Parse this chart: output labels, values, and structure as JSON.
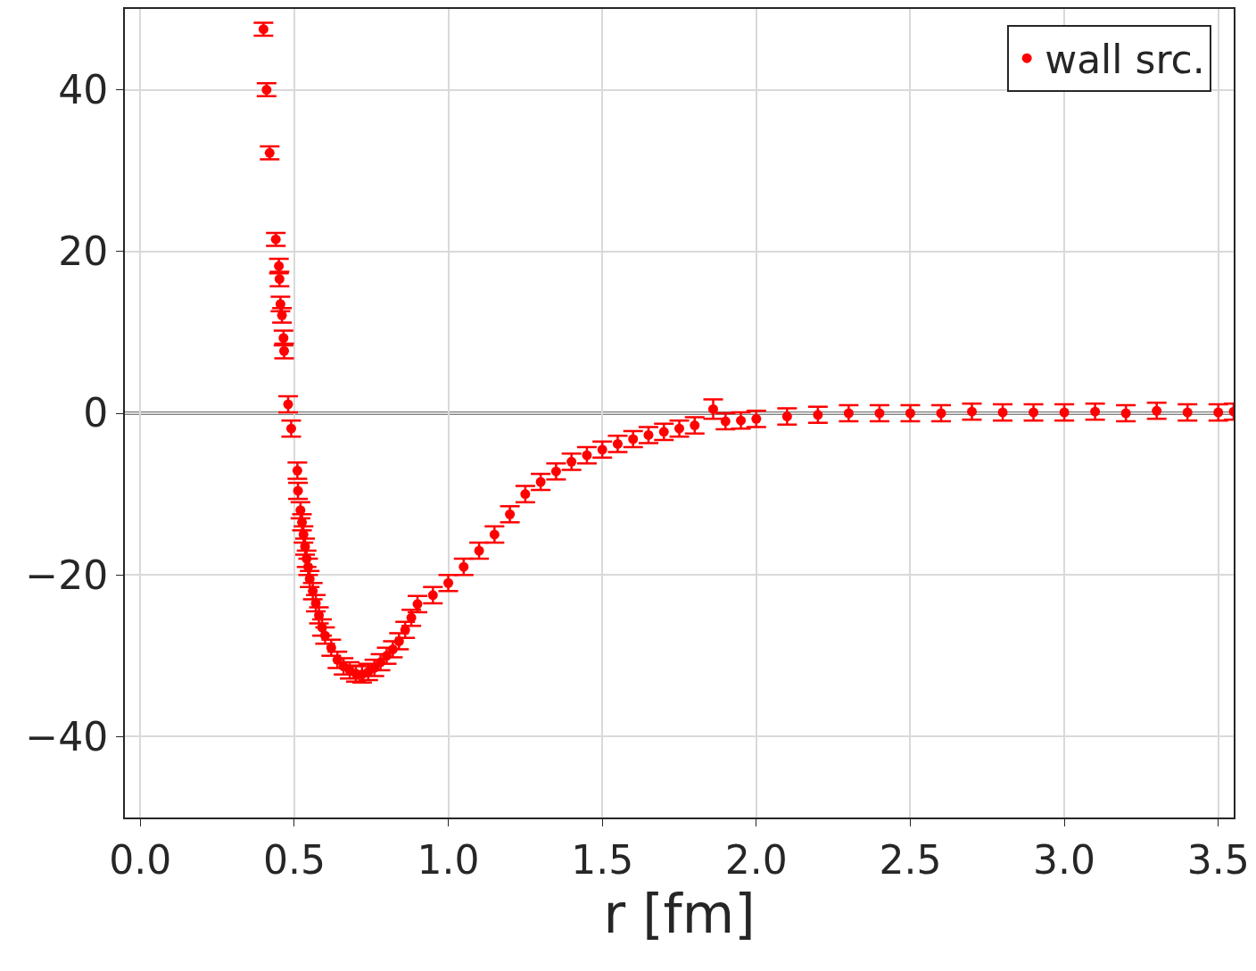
{
  "chart_data": {
    "type": "scatter",
    "xlabel": "r [fm]",
    "x": [
      0.4,
      0.41,
      0.42,
      0.44,
      0.45,
      0.452,
      0.455,
      0.46,
      0.465,
      0.467,
      0.48,
      0.49,
      0.51,
      0.512,
      0.52,
      0.525,
      0.53,
      0.535,
      0.54,
      0.545,
      0.55,
      0.56,
      0.57,
      0.58,
      0.59,
      0.6,
      0.62,
      0.64,
      0.66,
      0.68,
      0.7,
      0.72,
      0.74,
      0.76,
      0.78,
      0.8,
      0.82,
      0.84,
      0.86,
      0.88,
      0.9,
      0.95,
      1.0,
      1.05,
      1.1,
      1.15,
      1.2,
      1.25,
      1.3,
      1.35,
      1.4,
      1.45,
      1.5,
      1.55,
      1.6,
      1.65,
      1.7,
      1.75,
      1.8,
      1.86,
      1.9,
      1.95,
      2.0,
      2.1,
      2.2,
      2.3,
      2.4,
      2.5,
      2.6,
      2.7,
      2.8,
      2.9,
      3.0,
      3.1,
      3.2,
      3.3,
      3.4,
      3.5,
      3.55
    ],
    "series": [
      {
        "name": "wall src.",
        "color": "#ff0000",
        "values": [
          47.5,
          40.0,
          32.2,
          21.5,
          18.2,
          16.6,
          13.5,
          12.1,
          9.3,
          7.7,
          1.1,
          -1.9,
          -7.1,
          -9.6,
          -12,
          -13.5,
          -15,
          -16.5,
          -18,
          -19,
          -20.5,
          -22,
          -23.5,
          -25,
          -26.5,
          -27.5,
          -29,
          -30.5,
          -31.3,
          -31.8,
          -32.2,
          -32.3,
          -32,
          -31.5,
          -30.8,
          -30,
          -29.2,
          -28.2,
          -26.8,
          -25.3,
          -23.6,
          -22.5,
          -21,
          -19,
          -17,
          -15,
          -12.5,
          -10,
          -8.5,
          -7.2,
          -6,
          -5.2,
          -4.5,
          -3.8,
          -3.2,
          -2.7,
          -2.3,
          -1.9,
          -1.5,
          0.5,
          -1.0,
          -0.9,
          -0.7,
          -0.4,
          -0.2,
          0,
          0,
          0,
          0,
          0.2,
          0.1,
          0.1,
          0.1,
          0.2,
          0,
          0.3,
          0.1,
          0.1,
          0.2
        ],
        "errors": [
          0.8,
          0.8,
          0.8,
          0.8,
          0.9,
          0.9,
          0.9,
          0.9,
          0.9,
          0.9,
          1,
          1,
          1,
          1,
          1,
          1,
          1,
          1,
          1,
          1,
          1,
          1,
          1,
          1,
          1,
          1,
          1,
          1,
          1,
          1,
          1,
          1,
          1,
          1,
          1,
          1,
          1,
          1,
          1,
          1,
          1,
          1,
          1,
          1,
          1,
          1,
          1,
          1,
          1,
          1,
          1,
          1,
          1,
          1,
          1,
          1,
          1,
          1,
          1,
          1.2,
          1,
          1,
          1,
          1,
          1,
          1,
          1,
          1,
          1,
          1,
          1,
          1,
          1,
          1,
          1,
          1,
          1,
          1,
          1
        ]
      }
    ],
    "xlim": [
      -0.05,
      3.55
    ],
    "ylim": [
      -50,
      50
    ],
    "xticks": [
      {
        "value": 0,
        "label": "0.0"
      },
      {
        "value": 0.5,
        "label": "0.5"
      },
      {
        "value": 1,
        "label": "1.0"
      },
      {
        "value": 1.5,
        "label": "1.5"
      },
      {
        "value": 2,
        "label": "2.0"
      },
      {
        "value": 2.5,
        "label": "2.5"
      },
      {
        "value": 3,
        "label": "3.0"
      },
      {
        "value": 3.5,
        "label": "3.5"
      }
    ],
    "yticks": [
      -40,
      -20,
      0,
      20,
      40
    ],
    "ref_lines": [
      {
        "axis": "y",
        "value": 0,
        "color": "#000000"
      }
    ],
    "grid": true,
    "legend": "top right",
    "marker": "circle"
  }
}
